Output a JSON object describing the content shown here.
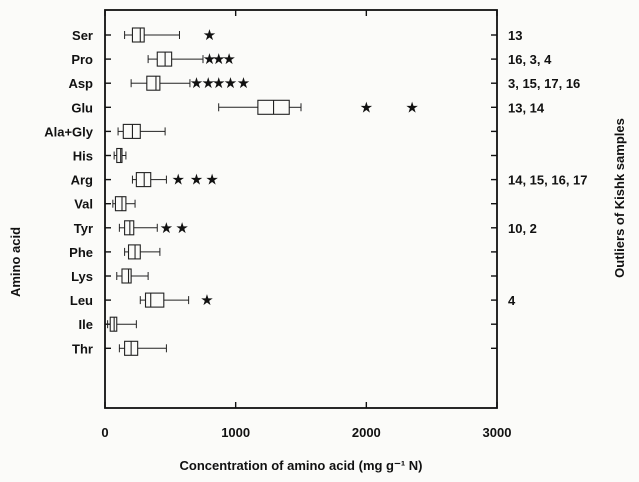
{
  "chart_data": {
    "type": "boxplot",
    "orientation": "horizontal",
    "xlabel": "Concentration of amino acid (mg g⁻¹ N)",
    "ylabel": "Amino acid",
    "right_axis_label": "Outliers  of Kishk samples",
    "xlim": [
      0,
      3000
    ],
    "x_ticks": [
      0,
      1000,
      2000,
      3000
    ],
    "x_tick_labels": [
      "0",
      "1000",
      "2000",
      "3000"
    ],
    "grid": false,
    "series": [
      {
        "name": "Ser",
        "min": 150,
        "q1": 210,
        "median": 270,
        "q3": 300,
        "max": 570,
        "outliers": [
          800
        ],
        "outlier_samples": "13"
      },
      {
        "name": "Pro",
        "min": 330,
        "q1": 400,
        "median": 460,
        "q3": 510,
        "max": 750,
        "outliers": [
          800,
          870,
          950
        ],
        "outlier_samples": "16, 3, 4"
      },
      {
        "name": "Asp",
        "min": 200,
        "q1": 320,
        "median": 390,
        "q3": 420,
        "max": 650,
        "outliers": [
          700,
          790,
          870,
          960,
          1060
        ],
        "outlier_samples": "3, 15, 17, 16"
      },
      {
        "name": "Glu",
        "min": 870,
        "q1": 1170,
        "median": 1290,
        "q3": 1410,
        "max": 1500,
        "outliers": [
          2000,
          2350
        ],
        "outlier_samples": "13, 14"
      },
      {
        "name": "Ala+Gly",
        "min": 100,
        "q1": 140,
        "median": 210,
        "q3": 270,
        "max": 460,
        "outliers": [],
        "outlier_samples": ""
      },
      {
        "name": "His",
        "min": 70,
        "q1": 90,
        "median": 120,
        "q3": 130,
        "max": 160,
        "outliers": [],
        "outlier_samples": ""
      },
      {
        "name": "Arg",
        "min": 210,
        "q1": 240,
        "median": 300,
        "q3": 350,
        "max": 470,
        "outliers": [
          560,
          700,
          820
        ],
        "outlier_samples": "14, 15, 16, 17"
      },
      {
        "name": "Val",
        "min": 60,
        "q1": 80,
        "median": 130,
        "q3": 160,
        "max": 230,
        "outliers": [],
        "outlier_samples": ""
      },
      {
        "name": "Tyr",
        "min": 110,
        "q1": 150,
        "median": 190,
        "q3": 220,
        "max": 400,
        "outliers": [
          470,
          590
        ],
        "outlier_samples": "10, 2"
      },
      {
        "name": "Phe",
        "min": 150,
        "q1": 180,
        "median": 230,
        "q3": 270,
        "max": 420,
        "outliers": [],
        "outlier_samples": ""
      },
      {
        "name": "Lys",
        "min": 90,
        "q1": 130,
        "median": 180,
        "q3": 200,
        "max": 330,
        "outliers": [],
        "outlier_samples": ""
      },
      {
        "name": "Leu",
        "min": 270,
        "q1": 310,
        "median": 350,
        "q3": 450,
        "max": 640,
        "outliers": [
          780
        ],
        "outlier_samples": "4"
      },
      {
        "name": "Ile",
        "min": 20,
        "q1": 40,
        "median": 70,
        "q3": 90,
        "max": 240,
        "outliers": [],
        "outlier_samples": ""
      },
      {
        "name": "Thr",
        "min": 110,
        "q1": 150,
        "median": 200,
        "q3": 250,
        "max": 470,
        "outliers": [],
        "outlier_samples": ""
      }
    ]
  }
}
